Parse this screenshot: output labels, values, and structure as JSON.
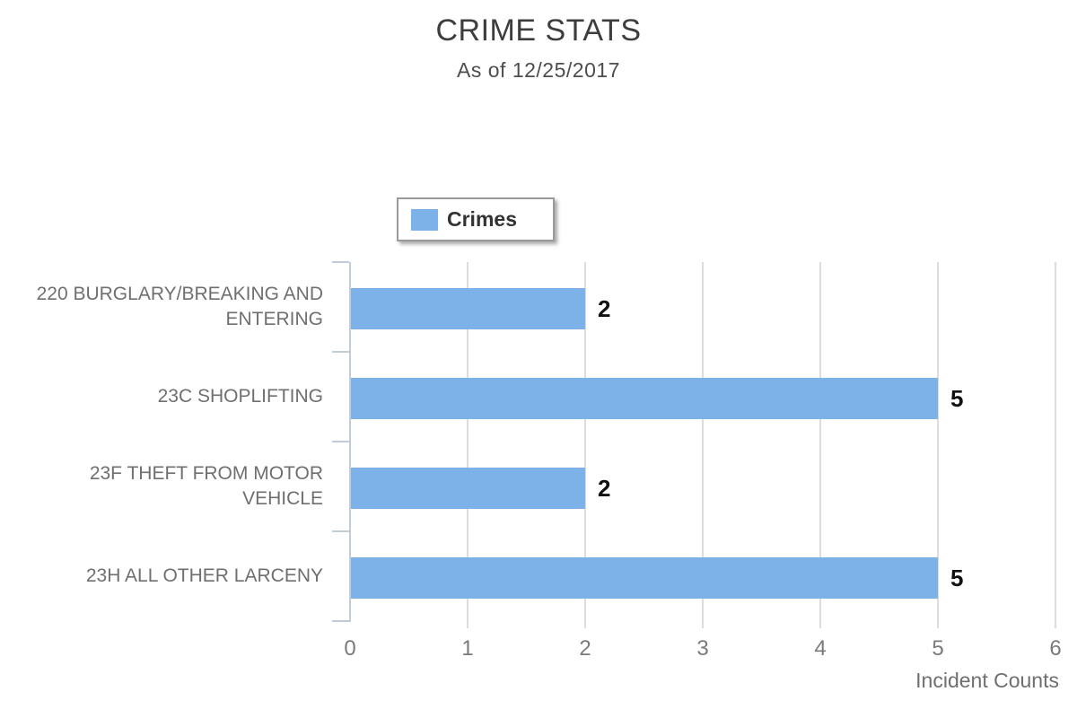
{
  "header": {
    "title": "CRIME STATS",
    "subtitle": "As of 12/25/2017"
  },
  "legend": {
    "label": "Crimes",
    "swatch_color": "#7CB2E8"
  },
  "chart_data": {
    "type": "bar",
    "orientation": "horizontal",
    "title": "CRIME STATS",
    "subtitle": "As of 12/25/2017",
    "series_name": "Crimes",
    "categories": [
      "220 BURGLARY/BREAKING AND ENTERING",
      "23C SHOPLIFTING",
      "23F THEFT FROM MOTOR VEHICLE",
      "23H ALL OTHER LARCENY"
    ],
    "values": [
      2,
      5,
      2,
      5
    ],
    "value_labels": [
      "2",
      "5",
      "2",
      "5"
    ],
    "xlabel": "Incident Counts",
    "ylabel": "",
    "xlim": [
      0,
      6
    ],
    "xticks": [
      "0",
      "1",
      "2",
      "3",
      "4",
      "5",
      "6"
    ],
    "grid": true,
    "legend_position": "top-center",
    "bar_color": "#7CB2E8",
    "gridline_color": "#dcdcdc",
    "axis_line_color": "#c0ccda",
    "label_color": "#6f6f6f",
    "value_label_color": "#111111"
  }
}
